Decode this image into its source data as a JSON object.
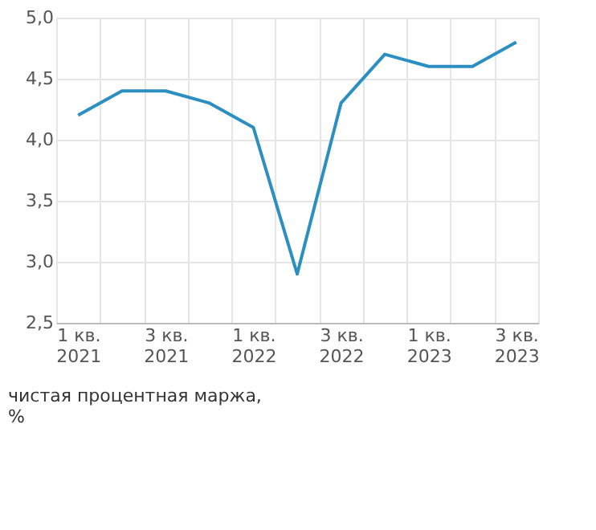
{
  "chart_data": {
    "type": "line",
    "categories": [
      "1 кв.\n2021",
      null,
      "3 кв.\n2021",
      null,
      "1 кв.\n2022",
      null,
      "3 кв.\n2022",
      null,
      "1 кв.\n2023",
      null,
      "3 кв.\n2023"
    ],
    "series": [
      {
        "color": "#2b8fc1",
        "values": [
          4.2,
          4.4,
          4.4,
          4.3,
          4.1,
          2.9,
          4.3,
          4.7,
          4.6,
          4.6,
          4.8
        ]
      }
    ],
    "ylim": [
      2.5,
      5.0
    ],
    "yticks": [
      {
        "value": 2.5,
        "label": "2,5"
      },
      {
        "value": 3.0,
        "label": "3,0"
      },
      {
        "value": 3.5,
        "label": "3,5"
      },
      {
        "value": 4.0,
        "label": "4,0"
      },
      {
        "value": 4.5,
        "label": "4,5"
      },
      {
        "value": 5.0,
        "label": "5,0"
      }
    ],
    "grid": true,
    "annotations": [
      "чистая процентная маржа,\n%"
    ]
  }
}
